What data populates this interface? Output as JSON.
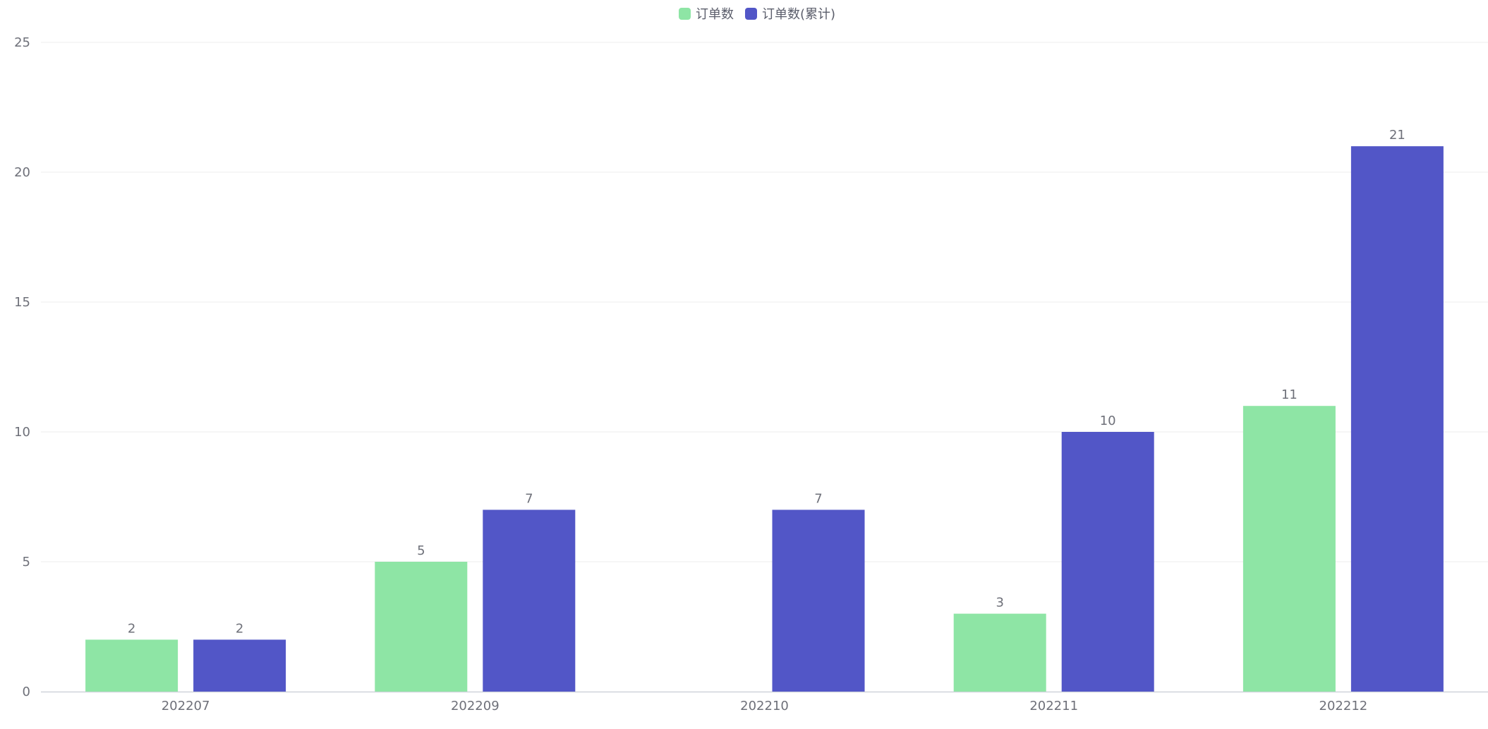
{
  "chart_data": {
    "type": "bar",
    "categories": [
      "202207",
      "202209",
      "202210",
      "202211",
      "202212"
    ],
    "series": [
      {
        "name": "订单数",
        "color": "#8ee5a5",
        "values": [
          2,
          5,
          null,
          3,
          11
        ]
      },
      {
        "name": "订单数(累计)",
        "color": "#5256c7",
        "values": [
          2,
          7,
          7,
          10,
          21
        ]
      }
    ],
    "title": "",
    "xlabel": "",
    "ylabel": "",
    "ylim": [
      0,
      25
    ],
    "yticks": [
      0,
      5,
      10,
      15,
      20,
      25
    ],
    "grid": true,
    "legend": "top-center",
    "data_labels": true
  }
}
